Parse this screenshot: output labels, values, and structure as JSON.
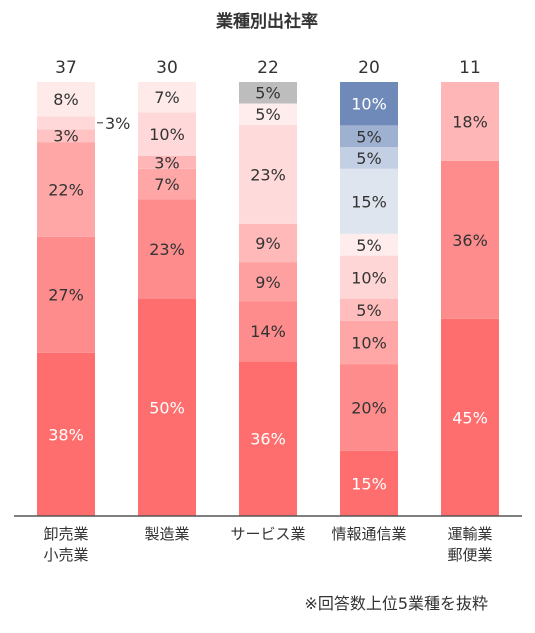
{
  "chart_data": {
    "type": "bar",
    "stacked": true,
    "percent_stacked": true,
    "title": "業種別出社率",
    "categories": [
      [
        "卸売業",
        "小売業"
      ],
      [
        "製造業"
      ],
      [
        "サービス業"
      ],
      [
        "情報通信業"
      ],
      [
        "運輸業",
        "郵便業"
      ]
    ],
    "totals": [
      "37",
      "30",
      "22",
      "20",
      "11"
    ],
    "stacks": [
      [
        {
          "value": 38,
          "label": "38%",
          "color": "#ff6e6e"
        },
        {
          "value": 27,
          "label": "27%",
          "color": "#ff8c8c"
        },
        {
          "value": 22,
          "label": "22%",
          "color": "#ffa7a7"
        },
        {
          "value": 3,
          "label": "3%",
          "color": "#ffc3c3"
        },
        {
          "value": 3,
          "label": "3%",
          "color": "#ffd9d9",
          "callout": true
        },
        {
          "value": 8,
          "label": "8%",
          "color": "#ffeaea"
        }
      ],
      [
        {
          "value": 50,
          "label": "50%",
          "color": "#ff6e6e"
        },
        {
          "value": 23,
          "label": "23%",
          "color": "#ff8c8c"
        },
        {
          "value": 7,
          "label": "7%",
          "color": "#ffa7a7"
        },
        {
          "value": 3,
          "label": "3%",
          "color": "#ffb6b6"
        },
        {
          "value": 10,
          "label": "10%",
          "color": "#ffd9d9"
        },
        {
          "value": 7,
          "label": "7%",
          "color": "#ffeaea"
        }
      ],
      [
        {
          "value": 36,
          "label": "36%",
          "color": "#ff6e6e"
        },
        {
          "value": 14,
          "label": "14%",
          "color": "#ff8c8c"
        },
        {
          "value": 9,
          "label": "9%",
          "color": "#ffa0a0"
        },
        {
          "value": 9,
          "label": "9%",
          "color": "#ffb9b9"
        },
        {
          "value": 23,
          "label": "23%",
          "color": "#ffdada"
        },
        {
          "value": 5,
          "label": "5%",
          "color": "#ffeded"
        },
        {
          "value": 5,
          "label": "5%",
          "color": "#bdbdbd"
        }
      ],
      [
        {
          "value": 15,
          "label": "15%",
          "color": "#ff6e6e"
        },
        {
          "value": 20,
          "label": "20%",
          "color": "#ff8c8c"
        },
        {
          "value": 10,
          "label": "10%",
          "color": "#ffa7a7"
        },
        {
          "value": 5,
          "label": "5%",
          "color": "#ffbdbd"
        },
        {
          "value": 10,
          "label": "10%",
          "color": "#ffd6d6"
        },
        {
          "value": 5,
          "label": "5%",
          "color": "#ffeded"
        },
        {
          "value": 15,
          "label": "15%",
          "color": "#dfe5ef"
        },
        {
          "value": 5,
          "label": "5%",
          "color": "#c3cfe2"
        },
        {
          "value": 5,
          "label": "5%",
          "color": "#9fb1d0"
        },
        {
          "value": 10,
          "label": "10%",
          "color": "#6f8ab9"
        }
      ],
      [
        {
          "value": 45,
          "label": "45%",
          "color": "#ff6e6e"
        },
        {
          "value": 36,
          "label": "36%",
          "color": "#ff8c8c"
        },
        {
          "value": 18,
          "label": "18%",
          "color": "#ffb6b6"
        }
      ]
    ],
    "ylim": [
      0,
      100
    ],
    "grid": false,
    "legend": "none",
    "annotation": "※回答数上位5業種を抜粋"
  }
}
